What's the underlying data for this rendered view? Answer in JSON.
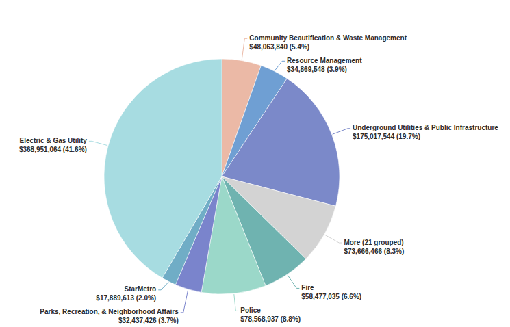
{
  "chart_data": {
    "type": "pie",
    "categories": [
      "Community Beautification & Waste Management",
      "Resource Management",
      "Underground Utilities & Public Infrastructure",
      "More (21 grouped)",
      "Fire",
      "Police",
      "Parks, Recreation, & Neighborhood Affairs",
      "StarMetro",
      "Electric & Gas Utility"
    ],
    "values": [
      48063840,
      34869548,
      175017544,
      73666466,
      58477035,
      78568937,
      32437426,
      17889613,
      368951064
    ],
    "value_labels": [
      "$48,063,840 (5.4%)",
      "$34,869,548 (3.9%)",
      "$175,017,544 (19.7%)",
      "$73,666,466 (8.3%)",
      "$58,477,035 (6.6%)",
      "$78,568,937 (8.8%)",
      "$32,437,426 (3.7%)",
      "$17,889,613 (2.0%)",
      "$368,951,064 (41.6%)"
    ],
    "colors": [
      "#ebb9a6",
      "#6f9fd3",
      "#7b89c9",
      "#d3d3d3",
      "#6fb3b0",
      "#9bd8c9",
      "#7a84cc",
      "#70adc6",
      "#a7dce1"
    ],
    "data_labels": true
  }
}
